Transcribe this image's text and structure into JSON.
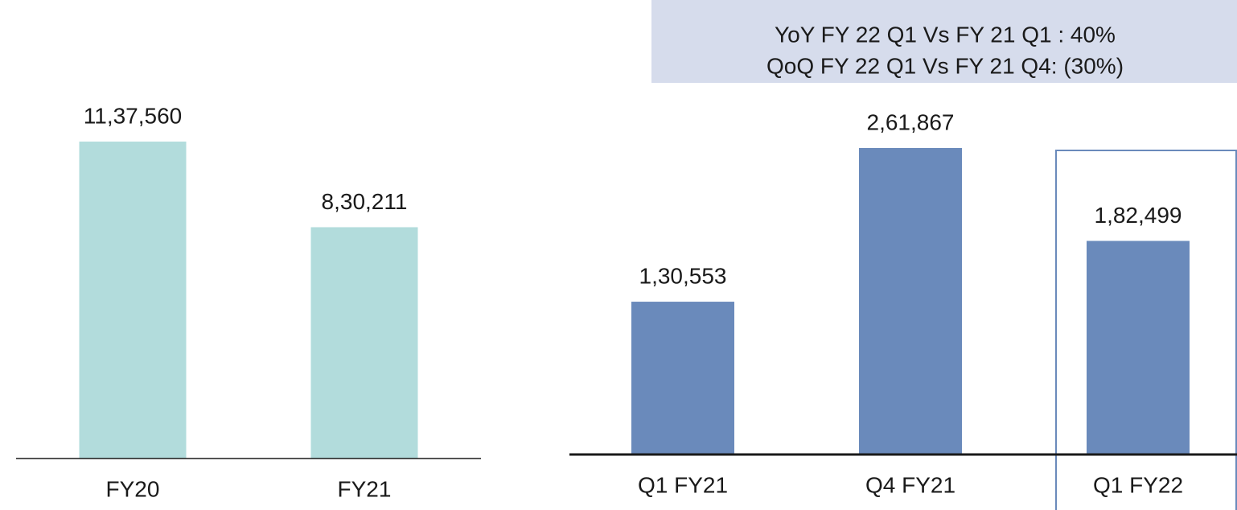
{
  "chart_data": [
    {
      "type": "bar",
      "categories": [
        "FY20",
        "FY21"
      ],
      "values": [
        1137560,
        830211
      ],
      "value_labels": [
        "11,37,560",
        "8,30,211"
      ],
      "color": "#b2dcdc"
    },
    {
      "type": "bar",
      "categories": [
        "Q1 FY21",
        "Q4 FY21",
        "Q1 FY22"
      ],
      "values": [
        130553,
        261867,
        182499
      ],
      "value_labels": [
        "1,30,553",
        "2,61,867",
        "1,82,499"
      ],
      "color": "#6a8abb",
      "annotations": [
        "YoY FY 22 Q1 Vs FY 21 Q1 : 40%",
        "QoQ FY 22 Q1 Vs FY 21 Q4: (30%)"
      ]
    }
  ]
}
